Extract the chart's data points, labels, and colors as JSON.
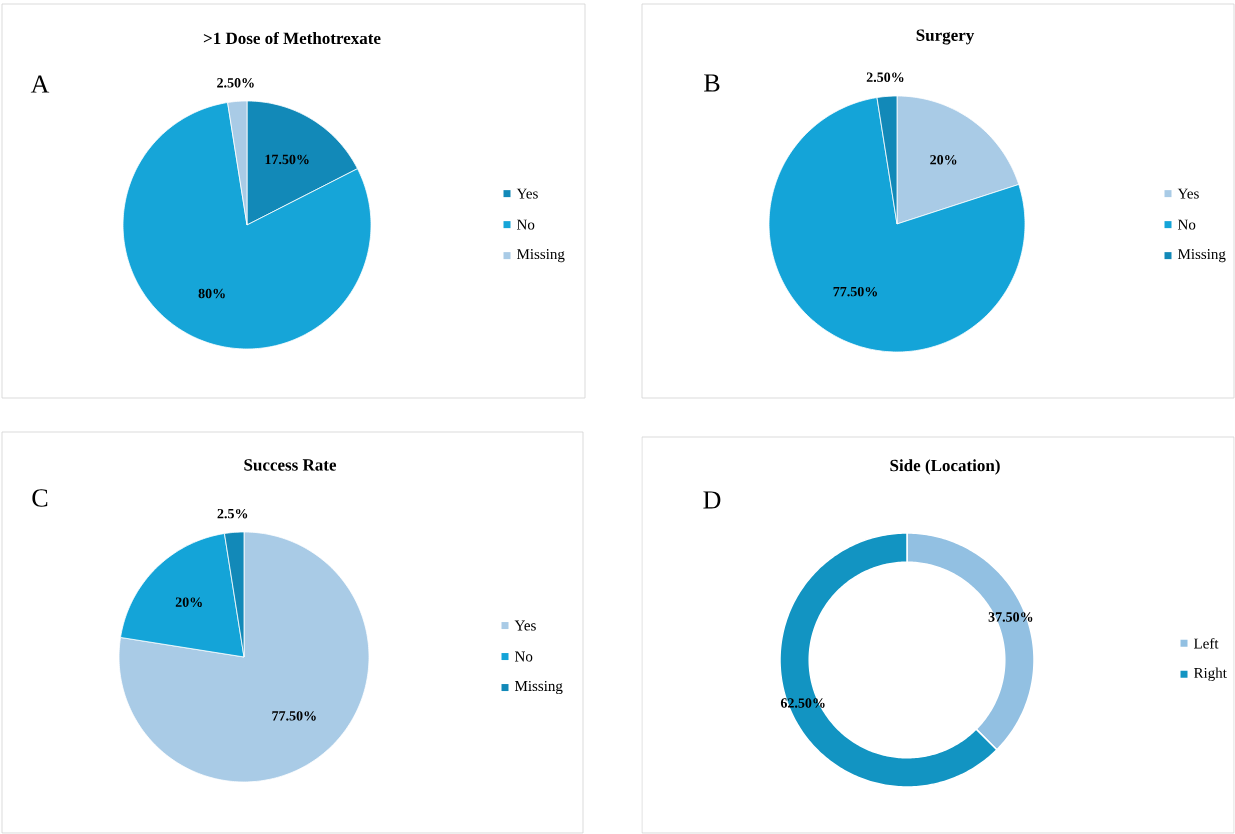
{
  "chart_data": [
    {
      "type": "pie",
      "title": ">1 Dose of Methotrexate",
      "annotations": [
        "A"
      ],
      "categories": [
        "Yes",
        "No",
        "Missing"
      ],
      "values": [
        17.5,
        80,
        2.5
      ],
      "colors": [
        "#1289b8",
        "#16a5d8",
        "#a9cbe6"
      ],
      "value_labels": [
        "17.50%",
        "80%",
        "2.50%"
      ],
      "legend": "right"
    },
    {
      "type": "pie",
      "title": "Surgery",
      "annotations": [
        "B"
      ],
      "categories": [
        "Yes",
        "No",
        "Missing"
      ],
      "values": [
        20,
        77.5,
        2.5
      ],
      "colors": [
        "#a9cbe6",
        "#14a4d8",
        "#1289b8"
      ],
      "value_labels": [
        "20%",
        "77.50%",
        "2.50%"
      ],
      "legend": "right"
    },
    {
      "type": "pie",
      "title": "Success Rate",
      "annotations": [
        "C"
      ],
      "categories": [
        "Yes",
        "No",
        "Missing"
      ],
      "values": [
        77.5,
        20,
        2.5
      ],
      "colors": [
        "#a9cbe6",
        "#14a4d8",
        "#1289b8"
      ],
      "value_labels": [
        "77.50%",
        "20%",
        "2.5%"
      ],
      "legend": "right"
    },
    {
      "type": "donut",
      "title": "Side (Location)",
      "annotations": [
        "D"
      ],
      "categories": [
        "Left",
        "Right"
      ],
      "values": [
        37.5,
        62.5
      ],
      "colors": [
        "#92c0e2",
        "#1294c2"
      ],
      "value_labels": [
        "37.50%",
        "62.50%"
      ],
      "legend": "right"
    }
  ]
}
